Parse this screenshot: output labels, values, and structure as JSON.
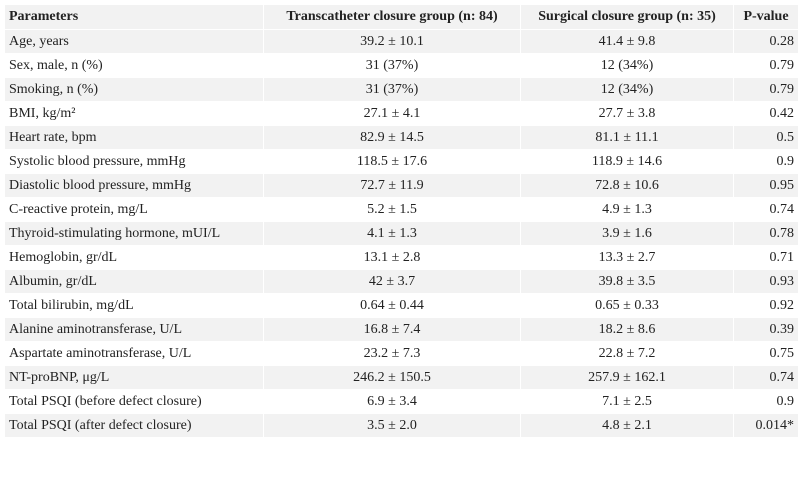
{
  "table": {
    "header": [
      "Parameters",
      "Transcatheter closure group (n: 84)",
      "Surgical closure group (n: 35)",
      "P-value"
    ],
    "rows": [
      [
        "Age, years",
        "39.2 ± 10.1",
        "41.4 ± 9.8",
        "0.28"
      ],
      [
        "Sex, male, n (%)",
        "31 (37%)",
        "12 (34%)",
        "0.79"
      ],
      [
        "Smoking, n (%)",
        "31 (37%)",
        "12 (34%)",
        "0.79"
      ],
      [
        "BMI, kg/m²",
        "27.1 ± 4.1",
        "27.7 ± 3.8",
        "0.42"
      ],
      [
        "Heart rate, bpm",
        "82.9 ± 14.5",
        "81.1 ± 11.1",
        "0.5"
      ],
      [
        "Systolic blood pressure, mmHg",
        "118.5 ± 17.6",
        "118.9 ± 14.6",
        "0.9"
      ],
      [
        "Diastolic blood pressure, mmHg",
        "72.7 ± 11.9",
        "72.8 ± 10.6",
        "0.95"
      ],
      [
        "C-reactive protein, mg/L",
        "5.2 ± 1.5",
        "4.9 ± 1.3",
        "0.74"
      ],
      [
        "Thyroid-stimulating hormone, mUI/L",
        "4.1 ± 1.3",
        "3.9 ± 1.6",
        "0.78"
      ],
      [
        "Hemoglobin, gr/dL",
        "13.1 ± 2.8",
        "13.3 ± 2.7",
        "0.71"
      ],
      [
        "Albumin, gr/dL",
        "42 ± 3.7",
        "39.8 ± 3.5",
        "0.93"
      ],
      [
        "Total bilirubin, mg/dL",
        "0.64 ± 0.44",
        "0.65 ± 0.33",
        "0.92"
      ],
      [
        "Alanine aminotransferase, U/L",
        "16.8 ± 7.4",
        "18.2 ± 8.6",
        "0.39"
      ],
      [
        "Aspartate aminotransferase, U/L",
        "23.2 ± 7.3",
        "22.8 ± 7.2",
        "0.75"
      ],
      [
        "NT-proBNP, μg/L",
        "246.2 ± 150.5",
        "257.9 ± 162.1",
        "0.74"
      ],
      [
        "Total PSQI (before defect closure)",
        "6.9 ± 3.4",
        "7.1 ± 2.5",
        "0.9"
      ],
      [
        "Total PSQI (after defect closure)",
        "3.5 ± 2.0",
        "4.8 ± 2.1",
        "0.014*"
      ]
    ]
  }
}
